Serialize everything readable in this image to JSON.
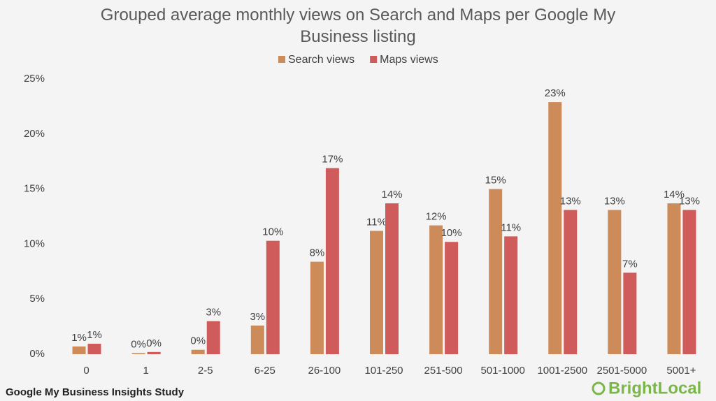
{
  "chart_data": {
    "type": "bar",
    "title": "Grouped average monthly views on Search and Maps per Google My Business listing",
    "categories": [
      "0",
      "1",
      "2-5",
      "6-25",
      "26-100",
      "101-250",
      "251-500",
      "501-1000",
      "1001-2500",
      "2501-5000",
      "5001+"
    ],
    "series": [
      {
        "name": "Search views",
        "color": "#cd8b5a",
        "values": [
          0.7,
          0.1,
          0.4,
          2.6,
          8.4,
          11.2,
          11.7,
          15.0,
          22.9,
          13.1,
          13.7
        ],
        "value_labels": [
          "1%",
          "0%",
          "0%",
          "3%",
          "8%",
          "11%",
          "12%",
          "15%",
          "23%",
          "13%",
          "14%"
        ]
      },
      {
        "name": "Maps views",
        "color": "#d05b5b",
        "values": [
          0.95,
          0.2,
          3.0,
          10.3,
          16.9,
          13.7,
          10.2,
          10.7,
          13.1,
          7.4,
          13.1
        ],
        "value_labels": [
          "1%",
          "0%",
          "3%",
          "10%",
          "17%",
          "14%",
          "10%",
          "11%",
          "13%",
          "7%",
          "13%"
        ]
      }
    ],
    "ylim": [
      0,
      25
    ],
    "yticks": [
      {
        "value": 0,
        "label": "0%"
      },
      {
        "value": 5,
        "label": "5%"
      },
      {
        "value": 10,
        "label": "10%"
      },
      {
        "value": 15,
        "label": "15%"
      },
      {
        "value": 20,
        "label": "20%"
      },
      {
        "value": 25,
        "label": "25%"
      }
    ],
    "grid": false,
    "legend": "top",
    "source": "Google My Business Insights Study",
    "brand": "BrightLocal"
  }
}
